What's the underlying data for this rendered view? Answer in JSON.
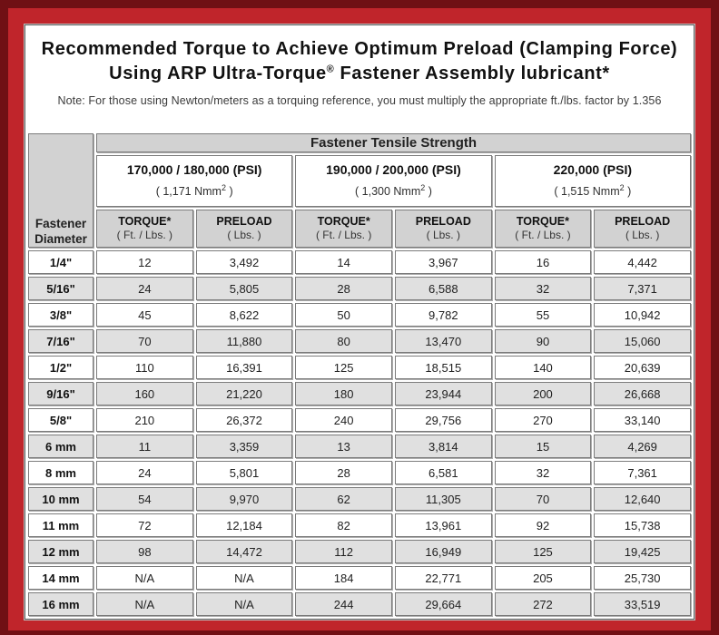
{
  "colors": {
    "frame_outer": "#701014",
    "frame_inner": "#c0252b",
    "header_bg": "#d2d2d2",
    "row_alt_bg": "#e0e0e0"
  },
  "title": {
    "line1": "Recommended Torque to Achieve Optimum Preload (Clamping Force)",
    "line2_main": "Using ARP Ultra-Torque",
    "line2_sup": "®",
    "line2_rest": " Fastener Assembly lubricant*"
  },
  "note": "Note: For those using Newton/meters as a torquing reference, you must multiply the appropriate ft./lbs. factor by 1.356",
  "table": {
    "corner_line1": "Fastener",
    "corner_line2": "Diameter",
    "tensile_header": "Fastener Tensile Strength",
    "strength_groups": [
      {
        "psi": "170,000 / 180,000 (PSI)",
        "nmm_open": "( 1,171 Nmm",
        "nmm_sup": "2",
        "nmm_close": " )"
      },
      {
        "psi": "190,000 / 200,000 (PSI)",
        "nmm_open": "( 1,300 Nmm",
        "nmm_sup": "2",
        "nmm_close": " )"
      },
      {
        "psi": "220,000 (PSI)",
        "nmm_open": "( 1,515 Nmm",
        "nmm_sup": "2",
        "nmm_close": " )"
      }
    ],
    "col_headers": [
      {
        "label": "TORQUE*",
        "unit": "( Ft. / Lbs. )"
      },
      {
        "label": "PRELOAD",
        "unit": "( Lbs. )"
      },
      {
        "label": "TORQUE*",
        "unit": "( Ft. / Lbs. )"
      },
      {
        "label": "PRELOAD",
        "unit": "( Lbs. )"
      },
      {
        "label": "TORQUE*",
        "unit": "( Ft. / Lbs. )"
      },
      {
        "label": "PRELOAD",
        "unit": "( Lbs. )"
      }
    ],
    "rows": [
      {
        "dia": "1/4\"",
        "values": [
          "12",
          "3,492",
          "14",
          "3,967",
          "16",
          "4,442"
        ]
      },
      {
        "dia": "5/16\"",
        "values": [
          "24",
          "5,805",
          "28",
          "6,588",
          "32",
          "7,371"
        ]
      },
      {
        "dia": "3/8\"",
        "values": [
          "45",
          "8,622",
          "50",
          "9,782",
          "55",
          "10,942"
        ]
      },
      {
        "dia": "7/16\"",
        "values": [
          "70",
          "11,880",
          "80",
          "13,470",
          "90",
          "15,060"
        ]
      },
      {
        "dia": "1/2\"",
        "values": [
          "110",
          "16,391",
          "125",
          "18,515",
          "140",
          "20,639"
        ]
      },
      {
        "dia": "9/16\"",
        "values": [
          "160",
          "21,220",
          "180",
          "23,944",
          "200",
          "26,668"
        ]
      },
      {
        "dia": "5/8\"",
        "values": [
          "210",
          "26,372",
          "240",
          "29,756",
          "270",
          "33,140"
        ]
      },
      {
        "dia": "6 mm",
        "values": [
          "11",
          "3,359",
          "13",
          "3,814",
          "15",
          "4,269"
        ]
      },
      {
        "dia": "8 mm",
        "values": [
          "24",
          "5,801",
          "28",
          "6,581",
          "32",
          "7,361"
        ]
      },
      {
        "dia": "10 mm",
        "values": [
          "54",
          "9,970",
          "62",
          "11,305",
          "70",
          "12,640"
        ]
      },
      {
        "dia": "11 mm",
        "values": [
          "72",
          "12,184",
          "82",
          "13,961",
          "92",
          "15,738"
        ]
      },
      {
        "dia": "12 mm",
        "values": [
          "98",
          "14,472",
          "112",
          "16,949",
          "125",
          "19,425"
        ]
      },
      {
        "dia": "14 mm",
        "values": [
          "N/A",
          "N/A",
          "184",
          "22,771",
          "205",
          "25,730"
        ]
      },
      {
        "dia": "16 mm",
        "values": [
          "N/A",
          "N/A",
          "244",
          "29,664",
          "272",
          "33,519"
        ]
      }
    ]
  }
}
